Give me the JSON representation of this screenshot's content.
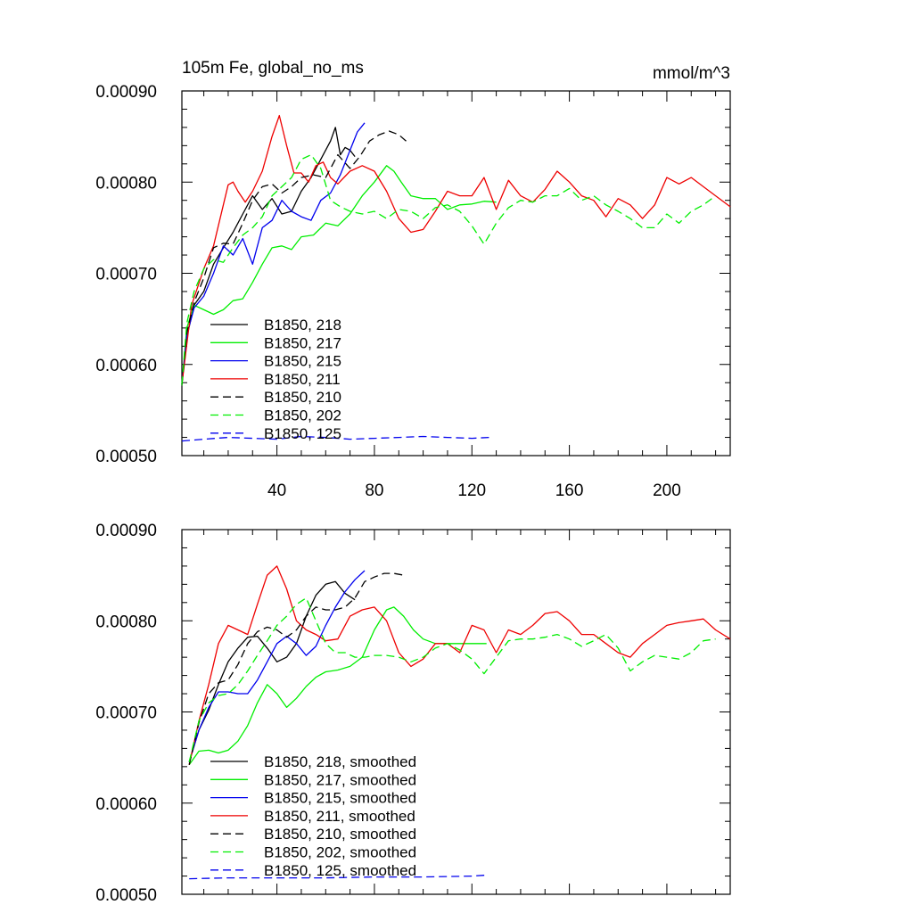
{
  "figure": {
    "title_left": "105m Fe, global_no_ms",
    "title_right": "mmol/m^3"
  },
  "chart_data": [
    {
      "id": "top",
      "type": "line",
      "title": "105m Fe, global_no_ms",
      "units": "mmol/m^3",
      "xlim": [
        1,
        226
      ],
      "ylim": [
        0.0005,
        0.0009
      ],
      "xticks": [
        40,
        80,
        120,
        160,
        200
      ],
      "xtick_labels": [
        "40",
        "80",
        "120",
        "160",
        "200"
      ],
      "yticks": [
        0.0005,
        0.0006,
        0.0007,
        0.0008,
        0.0009
      ],
      "ytick_labels": [
        "0.00050",
        "0.00060",
        "0.00070",
        "0.00080",
        "0.00090"
      ],
      "legend_placement": "lower-left",
      "series": [
        {
          "name": "B1850, 218",
          "color": "#000000",
          "dash": "solid",
          "x": [
            1,
            3,
            6,
            10,
            14,
            18,
            22,
            26,
            30,
            34,
            38,
            42,
            46,
            50,
            54,
            58,
            62,
            64,
            66,
            68,
            70,
            72
          ],
          "y": [
            0.000578,
            0.00063,
            0.000665,
            0.00068,
            0.00071,
            0.000728,
            0.000745,
            0.000765,
            0.000785,
            0.00077,
            0.000782,
            0.000765,
            0.000768,
            0.00079,
            0.000805,
            0.000825,
            0.000845,
            0.00086,
            0.00083,
            0.000838,
            0.000835,
            0.000828
          ]
        },
        {
          "name": "B1850, 217",
          "color": "#00ee00",
          "dash": "solid",
          "x": [
            1,
            3,
            6,
            10,
            14,
            18,
            22,
            26,
            30,
            34,
            38,
            42,
            46,
            50,
            55,
            60,
            65,
            70,
            75,
            80,
            85,
            88,
            91,
            95,
            100,
            105,
            110,
            115,
            120,
            125,
            130
          ],
          "y": [
            0.000577,
            0.00064,
            0.000665,
            0.00066,
            0.000655,
            0.00066,
            0.00067,
            0.000672,
            0.00069,
            0.00071,
            0.000728,
            0.00073,
            0.000726,
            0.00074,
            0.000742,
            0.000755,
            0.000752,
            0.000765,
            0.000785,
            0.0008,
            0.000818,
            0.000812,
            0.0008,
            0.000785,
            0.000782,
            0.000782,
            0.00077,
            0.000775,
            0.000776,
            0.000779,
            0.000778
          ]
        },
        {
          "name": "B1850, 215",
          "color": "#0000ee",
          "dash": "solid",
          "x": [
            1,
            3,
            6,
            10,
            14,
            18,
            22,
            26,
            30,
            34,
            38,
            42,
            46,
            50,
            54,
            58,
            62,
            66,
            70,
            73,
            76
          ],
          "y": [
            0.000578,
            0.000632,
            0.000662,
            0.000675,
            0.0007,
            0.00073,
            0.00072,
            0.000738,
            0.00071,
            0.00075,
            0.000758,
            0.00078,
            0.000768,
            0.000762,
            0.000758,
            0.00078,
            0.000788,
            0.000808,
            0.000835,
            0.000855,
            0.000865
          ]
        },
        {
          "name": "B1850, 211",
          "color": "#ee0000",
          "dash": "solid",
          "x": [
            1,
            5,
            10,
            14,
            18,
            20,
            22,
            24,
            27,
            30,
            34,
            38,
            41,
            44,
            47,
            50,
            53,
            56,
            59,
            62,
            65,
            70,
            75,
            80,
            85,
            90,
            95,
            100,
            105,
            110,
            115,
            120,
            125,
            130,
            135,
            140,
            145,
            150,
            155,
            160,
            165,
            170,
            175,
            180,
            185,
            190,
            195,
            200,
            205,
            210,
            215,
            220,
            226
          ],
          "y": [
            0.000578,
            0.000665,
            0.000705,
            0.00073,
            0.000775,
            0.000797,
            0.0008,
            0.00079,
            0.000778,
            0.00079,
            0.000812,
            0.00085,
            0.000873,
            0.00084,
            0.00081,
            0.00081,
            0.0008,
            0.000818,
            0.000822,
            0.000805,
            0.000798,
            0.000812,
            0.000818,
            0.000812,
            0.00079,
            0.00076,
            0.000745,
            0.000748,
            0.000768,
            0.00079,
            0.000785,
            0.000785,
            0.000805,
            0.00077,
            0.000802,
            0.000785,
            0.000778,
            0.000792,
            0.000812,
            0.0008,
            0.000785,
            0.00078,
            0.000762,
            0.000782,
            0.000775,
            0.00076,
            0.000775,
            0.000805,
            0.000798,
            0.000805,
            0.000795,
            0.000785,
            0.000773
          ]
        },
        {
          "name": "B1850, 210",
          "color": "#000000",
          "dash": "dashed",
          "x": [
            1,
            3,
            6,
            10,
            14,
            18,
            22,
            26,
            30,
            34,
            38,
            42,
            46,
            50,
            55,
            60,
            65,
            70,
            74,
            78,
            82,
            86,
            90,
            93
          ],
          "y": [
            0.000578,
            0.000635,
            0.000668,
            0.000695,
            0.000728,
            0.000733,
            0.000732,
            0.000755,
            0.00078,
            0.000795,
            0.000798,
            0.000788,
            0.000795,
            0.000805,
            0.000808,
            0.000805,
            0.00083,
            0.000815,
            0.000828,
            0.000845,
            0.000852,
            0.000856,
            0.000852,
            0.000845
          ]
        },
        {
          "name": "B1850, 202",
          "color": "#00ee00",
          "dash": "dashed",
          "x": [
            1,
            3,
            6,
            10,
            14,
            18,
            22,
            26,
            30,
            34,
            38,
            42,
            46,
            50,
            54,
            58,
            62,
            66,
            70,
            75,
            80,
            85,
            90,
            95,
            100,
            105,
            110,
            115,
            120,
            125,
            130,
            135,
            140,
            145,
            150,
            155,
            160,
            165,
            170,
            175,
            180,
            185,
            190,
            195,
            200,
            205,
            210,
            215,
            220
          ],
          "y": [
            0.000578,
            0.000645,
            0.00068,
            0.000705,
            0.000715,
            0.000712,
            0.000728,
            0.000742,
            0.00075,
            0.000762,
            0.000785,
            0.000795,
            0.000805,
            0.000825,
            0.00083,
            0.000815,
            0.00078,
            0.000773,
            0.000768,
            0.000765,
            0.000768,
            0.00076,
            0.00077,
            0.000768,
            0.00076,
            0.000772,
            0.000775,
            0.000768,
            0.000752,
            0.000732,
            0.000755,
            0.000772,
            0.00078,
            0.000778,
            0.000785,
            0.000785,
            0.000793,
            0.00078,
            0.000785,
            0.000775,
            0.000768,
            0.00076,
            0.00075,
            0.00075,
            0.000765,
            0.000755,
            0.000768,
            0.000775,
            0.000785
          ]
        },
        {
          "name": "B1850, 125",
          "color": "#0000ee",
          "dash": "dashed",
          "x": [
            1,
            10,
            20,
            30,
            40,
            50,
            60,
            70,
            80,
            90,
            100,
            110,
            120,
            127
          ],
          "y": [
            0.000516,
            0.000518,
            0.00052,
            0.000519,
            0.000518,
            0.000521,
            0.00052,
            0.000518,
            0.000519,
            0.00052,
            0.000521,
            0.00052,
            0.000519,
            0.00052
          ]
        }
      ]
    },
    {
      "id": "bottom",
      "type": "line",
      "xlim": [
        1,
        226
      ],
      "ylim": [
        0.0005,
        0.0009
      ],
      "xticks": [
        40,
        80,
        120,
        160,
        200
      ],
      "yticks": [
        0.0005,
        0.0006,
        0.0007,
        0.0008,
        0.0009
      ],
      "ytick_labels": [
        "0.00050",
        "0.00060",
        "0.00070",
        "0.00080",
        "0.00090"
      ],
      "legend_placement": "lower-left",
      "series": [
        {
          "name": "B1850, 218, smoothed",
          "color": "#000000",
          "dash": "solid",
          "x": [
            4,
            8,
            12,
            16,
            20,
            24,
            28,
            32,
            36,
            40,
            44,
            48,
            52,
            56,
            60,
            64,
            68,
            72
          ],
          "y": [
            0.000645,
            0.00068,
            0.000702,
            0.00073,
            0.000755,
            0.00077,
            0.000782,
            0.000783,
            0.00077,
            0.000755,
            0.00076,
            0.000775,
            0.000805,
            0.000828,
            0.00084,
            0.000843,
            0.00083,
            0.000823
          ]
        },
        {
          "name": "B1850, 217, smoothed",
          "color": "#00ee00",
          "dash": "solid",
          "x": [
            4,
            8,
            12,
            16,
            20,
            24,
            28,
            32,
            36,
            40,
            44,
            48,
            52,
            56,
            60,
            65,
            70,
            75,
            80,
            85,
            88,
            92,
            96,
            100,
            105,
            110,
            115,
            120,
            126
          ],
          "y": [
            0.000642,
            0.000657,
            0.000658,
            0.000655,
            0.000658,
            0.000668,
            0.000685,
            0.00071,
            0.00073,
            0.00072,
            0.000705,
            0.000715,
            0.000728,
            0.000738,
            0.000744,
            0.000746,
            0.00075,
            0.00076,
            0.00079,
            0.000812,
            0.000815,
            0.000805,
            0.00079,
            0.00078,
            0.000775,
            0.000775,
            0.000775,
            0.000775,
            0.000775
          ]
        },
        {
          "name": "B1850, 215, smoothed",
          "color": "#0000ee",
          "dash": "solid",
          "x": [
            4,
            8,
            12,
            16,
            20,
            24,
            28,
            32,
            36,
            40,
            44,
            48,
            52,
            56,
            60,
            64,
            68,
            72,
            76
          ],
          "y": [
            0.000645,
            0.00068,
            0.000705,
            0.000722,
            0.000722,
            0.00072,
            0.00072,
            0.000735,
            0.000755,
            0.000775,
            0.000783,
            0.000775,
            0.000762,
            0.000772,
            0.000795,
            0.000815,
            0.000832,
            0.000845,
            0.000855
          ]
        },
        {
          "name": "B1850, 211, smoothed",
          "color": "#ee0000",
          "dash": "solid",
          "x": [
            4,
            8,
            12,
            16,
            20,
            24,
            28,
            32,
            36,
            40,
            44,
            48,
            52,
            56,
            60,
            65,
            70,
            75,
            80,
            85,
            90,
            95,
            100,
            105,
            110,
            115,
            120,
            125,
            130,
            135,
            140,
            145,
            150,
            155,
            160,
            165,
            170,
            175,
            180,
            185,
            190,
            195,
            200,
            205,
            210,
            215,
            220,
            226
          ],
          "y": [
            0.000642,
            0.00069,
            0.00073,
            0.000775,
            0.000795,
            0.00079,
            0.000785,
            0.000818,
            0.00085,
            0.00086,
            0.000835,
            0.0008,
            0.00079,
            0.000785,
            0.000778,
            0.00078,
            0.000805,
            0.000812,
            0.000815,
            0.0008,
            0.000765,
            0.00075,
            0.000758,
            0.000775,
            0.000775,
            0.000765,
            0.000795,
            0.00079,
            0.000765,
            0.00079,
            0.000785,
            0.000795,
            0.000808,
            0.00081,
            0.0008,
            0.000785,
            0.000785,
            0.000775,
            0.000765,
            0.00076,
            0.000775,
            0.000785,
            0.000795,
            0.000798,
            0.0008,
            0.000802,
            0.00079,
            0.00078
          ]
        },
        {
          "name": "B1850, 210, smoothed",
          "color": "#000000",
          "dash": "dashed",
          "x": [
            4,
            8,
            12,
            16,
            20,
            24,
            28,
            32,
            36,
            40,
            44,
            48,
            52,
            56,
            60,
            64,
            68,
            72,
            76,
            80,
            84,
            88,
            92
          ],
          "y": [
            0.000642,
            0.000688,
            0.00072,
            0.000732,
            0.000735,
            0.000752,
            0.000775,
            0.000788,
            0.000793,
            0.00079,
            0.000782,
            0.00079,
            0.000805,
            0.000815,
            0.000812,
            0.000812,
            0.000815,
            0.000825,
            0.000843,
            0.000848,
            0.000852,
            0.000852,
            0.00085
          ]
        },
        {
          "name": "B1850, 202, smoothed",
          "color": "#00ee00",
          "dash": "dashed",
          "x": [
            4,
            8,
            12,
            16,
            20,
            24,
            28,
            32,
            36,
            40,
            44,
            48,
            52,
            56,
            60,
            64,
            68,
            72,
            76,
            80,
            85,
            90,
            95,
            100,
            105,
            110,
            115,
            120,
            125,
            130,
            135,
            140,
            145,
            150,
            155,
            160,
            165,
            170,
            175,
            180,
            185,
            190,
            195,
            200,
            205,
            210,
            215,
            220
          ],
          "y": [
            0.000645,
            0.00069,
            0.00071,
            0.000718,
            0.00072,
            0.00073,
            0.000745,
            0.000762,
            0.000778,
            0.000795,
            0.000805,
            0.000818,
            0.000825,
            0.0008,
            0.000775,
            0.000765,
            0.000765,
            0.00076,
            0.00076,
            0.000762,
            0.000762,
            0.00076,
            0.000755,
            0.00076,
            0.00077,
            0.000775,
            0.000768,
            0.000758,
            0.000742,
            0.00076,
            0.000778,
            0.00078,
            0.00078,
            0.000782,
            0.000785,
            0.00078,
            0.000772,
            0.000778,
            0.000785,
            0.00077,
            0.000745,
            0.000755,
            0.000762,
            0.00076,
            0.000758,
            0.000765,
            0.000778,
            0.00078
          ]
        },
        {
          "name": "B1850, 125, smoothed",
          "color": "#0000ee",
          "dash": "dashed",
          "x": [
            4,
            20,
            40,
            60,
            80,
            100,
            120,
            126
          ],
          "y": [
            0.000517,
            0.000518,
            0.000518,
            0.000518,
            0.000519,
            0.000519,
            0.00052,
            0.000521
          ]
        }
      ]
    }
  ]
}
